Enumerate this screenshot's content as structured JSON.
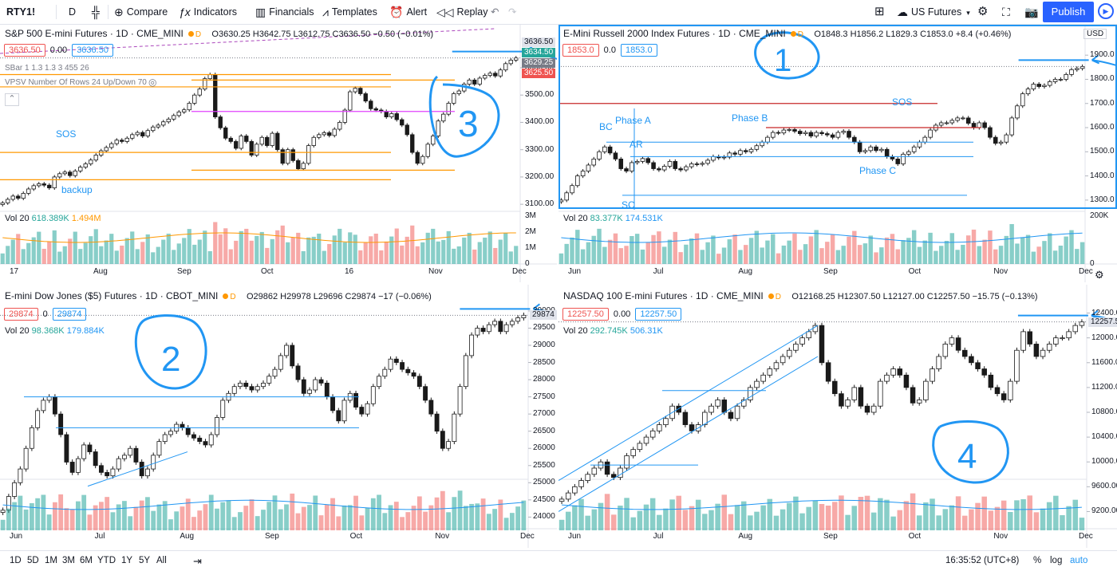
{
  "topbar": {
    "symbol": "RTY1!",
    "interval": "D",
    "compare": "Compare",
    "indicators": "Indicators",
    "financials": "Financials",
    "templates": "Templates",
    "alert": "Alert",
    "replay": "Replay",
    "layout_name": "US Futures",
    "publish": "Publish"
  },
  "bottombar": {
    "ranges": [
      "1D",
      "5D",
      "1M",
      "3M",
      "6M",
      "YTD",
      "1Y",
      "5Y",
      "All"
    ],
    "time": "16:35:52 (UTC+8)",
    "percent": "%",
    "log": "log",
    "auto": "auto"
  },
  "colors": {
    "up": "#26a69a",
    "down": "#ef5350",
    "accent": "#2196f3",
    "orange": "#ff9800",
    "ink": "#1a1a1a"
  },
  "panes": [
    {
      "id": "es",
      "title": "S&P 500 E-mini Futures · 1D · CME_MINI",
      "ohlc": "O3630.25 H3642.75 L3612.75 C3636.50 −0.50 (−0.01%)",
      "price_boxes": [
        "3636.50",
        "0.00",
        "3636.50"
      ],
      "indicator_lines": [
        "SBar 1 1.3 1.3 3 455 26",
        "VPSV Number Of Rows 24 Up/Down 70"
      ],
      "volume_label": "Vol 20",
      "vol_a": "618.389K",
      "vol_b": "1.494M",
      "annotations": [
        "SOS",
        "backup"
      ],
      "drawn_number": "3",
      "price_labels": [
        "3636.50",
        "3634.50",
        "3629.25",
        "3625.50"
      ],
      "x_ticks": [
        "17",
        "Aug",
        "Sep",
        "Oct",
        "16",
        "Nov",
        "Dec"
      ],
      "y_ticks": [
        "3600.00",
        "3500.00",
        "3400.00",
        "3300.00",
        "3200.00",
        "3100.00"
      ],
      "vol_ticks": [
        "3M",
        "2M",
        "1M",
        "0"
      ]
    },
    {
      "id": "rty",
      "title": "E-Mini Russell 2000 Index Futures · 1D · CME_MINI",
      "ohlc": "O1848.3 H1856.2 L1829.3 C1853.0 +8.4 (+0.46%)",
      "price_boxes": [
        "1853.0",
        "0.0",
        "1853.0"
      ],
      "volume_label": "Vol 20",
      "vol_a": "83.377K",
      "vol_b": "174.531K",
      "annotations": [
        "BC",
        "Phase A",
        "AR",
        "Phase B",
        "SOS",
        "Phase C",
        "SC"
      ],
      "drawn_number": "1",
      "currency": "USD",
      "x_ticks": [
        "Jun",
        "Jul",
        "Aug",
        "Sep",
        "Oct",
        "Nov",
        "Dec"
      ],
      "y_ticks": [
        "1900.0",
        "1800.0",
        "1700.0",
        "1600.0",
        "1500.0",
        "1400.0",
        "1300.0"
      ],
      "vol_ticks": [
        "200K",
        "0"
      ]
    },
    {
      "id": "ym",
      "title": "E-mini Dow Jones ($5) Futures · 1D · CBOT_MINI",
      "ohlc": "O29862 H29978 L29696 C29874 −17 (−0.06%)",
      "price_boxes": [
        "29874",
        "0",
        "29874"
      ],
      "volume_label": "Vol 20",
      "vol_a": "98.368K",
      "vol_b": "179.884K",
      "drawn_number": "2",
      "price_label": "29874",
      "x_ticks": [
        "Jun",
        "Jul",
        "Aug",
        "Sep",
        "Oct",
        "Nov",
        "Dec"
      ],
      "y_ticks": [
        "30000",
        "29500",
        "29000",
        "28500",
        "28000",
        "27500",
        "27000",
        "26500",
        "26000",
        "25500",
        "25000",
        "24500",
        "24000"
      ]
    },
    {
      "id": "nq",
      "title": "NASDAQ 100 E-mini Futures · 1D · CME_MINI",
      "ohlc": "O12168.25 H12307.50 L12127.00 C12257.50 −15.75 (−0.13%)",
      "price_boxes": [
        "12257.50",
        "0.00",
        "12257.50"
      ],
      "volume_label": "Vol 20",
      "vol_a": "292.745K",
      "vol_b": "506.31K",
      "drawn_number": "4",
      "price_label": "12257.50",
      "x_ticks": [
        "Jun",
        "Jul",
        "Aug",
        "Sep",
        "Oct",
        "Nov",
        "Dec"
      ],
      "y_ticks": [
        "12400.00",
        "12000.00",
        "11600.00",
        "11200.00",
        "10800.00",
        "10400.00",
        "10000.00",
        "9600.00",
        "9200.00"
      ]
    }
  ],
  "chart_data": [
    {
      "type": "candlestick",
      "title": "S&P 500 E-mini Futures · 1D · CME_MINI",
      "ylim": [
        3080,
        3670
      ],
      "series": [
        {
          "name": "price",
          "values": [
            3105,
            3118,
            3130,
            3122,
            3140,
            3156,
            3168,
            3175,
            3170,
            3160,
            3200,
            3212,
            3218,
            3205,
            3222,
            3236,
            3248,
            3262,
            3280,
            3296,
            3308,
            3322,
            3335,
            3330,
            3342,
            3355,
            3363,
            3350,
            3370,
            3383,
            3390,
            3402,
            3412,
            3425,
            3438,
            3446,
            3470,
            3500,
            3522,
            3560,
            3575,
            3420,
            3380,
            3342,
            3330,
            3305,
            3350,
            3330,
            3280,
            3320,
            3345,
            3315,
            3360,
            3300,
            3250,
            3300,
            3260,
            3230,
            3250,
            3315,
            3345,
            3355,
            3362,
            3352,
            3375,
            3400,
            3445,
            3512,
            3525,
            3505,
            3478,
            3450,
            3445,
            3440,
            3420,
            3432,
            3410,
            3390,
            3355,
            3290,
            3250,
            3275,
            3320,
            3350,
            3405,
            3430,
            3470,
            3505,
            3515,
            3540,
            3555,
            3540,
            3562,
            3572,
            3580,
            3570,
            3592,
            3615,
            3628,
            3636
          ]
        }
      ],
      "hlines": [
        3575,
        3555,
        3530,
        3440,
        3290,
        3225,
        3190
      ]
    },
    {
      "type": "candlestick",
      "title": "E-Mini Russell 2000 Index Futures · 1D · CME_MINI",
      "ylim": [
        1260,
        1960
      ],
      "series": [
        {
          "name": "price",
          "values": [
            1300,
            1330,
            1360,
            1400,
            1420,
            1445,
            1470,
            1500,
            1520,
            1495,
            1470,
            1430,
            1420,
            1455,
            1460,
            1472,
            1455,
            1430,
            1425,
            1440,
            1460,
            1430,
            1425,
            1438,
            1450,
            1448,
            1452,
            1465,
            1480,
            1475,
            1478,
            1495,
            1490,
            1505,
            1500,
            1510,
            1525,
            1540,
            1560,
            1580,
            1578,
            1590,
            1592,
            1585,
            1575,
            1580,
            1565,
            1580,
            1575,
            1570,
            1560,
            1580,
            1585,
            1560,
            1540,
            1500,
            1505,
            1520,
            1505,
            1510,
            1480,
            1470,
            1450,
            1490,
            1500,
            1520,
            1540,
            1560,
            1590,
            1610,
            1620,
            1620,
            1630,
            1640,
            1640,
            1618,
            1600,
            1620,
            1600,
            1560,
            1535,
            1540,
            1570,
            1640,
            1690,
            1740,
            1760,
            1780,
            1770,
            1775,
            1790,
            1800,
            1800,
            1820,
            1840,
            1845,
            1853
          ]
        }
      ]
    },
    {
      "type": "candlestick",
      "title": "E-mini Dow Jones ($5) Futures · 1D · CBOT_MINI",
      "ylim": [
        23800,
        30300
      ],
      "series": [
        {
          "name": "price",
          "values": [
            24200,
            24600,
            25000,
            25400,
            26000,
            26600,
            27100,
            27400,
            27500,
            27000,
            26400,
            25600,
            25300,
            25700,
            26100,
            25900,
            25500,
            25300,
            25200,
            25400,
            25700,
            25800,
            26000,
            25600,
            25200,
            25400,
            25800,
            26200,
            26400,
            26500,
            26700,
            26600,
            26400,
            26300,
            26200,
            26100,
            26400,
            26900,
            27400,
            27600,
            27800,
            27900,
            27800,
            27700,
            27800,
            27900,
            28100,
            28300,
            28700,
            29000,
            28400,
            28000,
            27600,
            27700,
            28000,
            27900,
            27500,
            27100,
            26800,
            27400,
            27600,
            27200,
            27000,
            27300,
            27800,
            28100,
            28300,
            28600,
            28500,
            28300,
            28200,
            28100,
            27800,
            27400,
            27000,
            26500,
            26000,
            26200,
            27000,
            27800,
            28700,
            29300,
            29500,
            29400,
            29600,
            29700,
            29400,
            29600,
            29700,
            29800,
            29874
          ]
        }
      ]
    },
    {
      "type": "candlestick",
      "title": "NASDAQ 100 E-mini Futures · 1D · CME_MINI",
      "ylim": [
        9000,
        12600
      ],
      "series": [
        {
          "name": "price",
          "values": [
            9400,
            9500,
            9600,
            9700,
            9800,
            9900,
            10000,
            9800,
            9750,
            9900,
            10100,
            10200,
            10300,
            10400,
            10500,
            10600,
            10700,
            10900,
            10800,
            10600,
            10500,
            10600,
            10800,
            10900,
            11000,
            10800,
            10700,
            10900,
            11000,
            11200,
            11300,
            11400,
            11500,
            11600,
            11700,
            11800,
            11900,
            12000,
            12100,
            12200,
            11600,
            11300,
            11100,
            10900,
            11000,
            11200,
            10900,
            10800,
            10900,
            11300,
            11400,
            11500,
            11400,
            11200,
            10950,
            11000,
            11300,
            11500,
            11700,
            11900,
            12000,
            11800,
            11700,
            11600,
            11500,
            11400,
            11200,
            11100,
            11000,
            11300,
            11800,
            12100,
            11900,
            11700,
            11800,
            11900,
            12000,
            12000,
            12100,
            12200,
            12257
          ]
        }
      ]
    }
  ]
}
